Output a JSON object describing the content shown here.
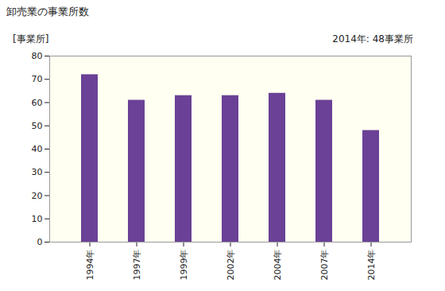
{
  "chart_data": {
    "type": "bar",
    "title": "卸売業の事業所数",
    "ylabel": "[事業所]",
    "annotation": "2014年: 48事業所",
    "categories": [
      "1994年",
      "1997年",
      "1999年",
      "2002年",
      "2004年",
      "2007年",
      "2014年"
    ],
    "values": [
      72,
      61,
      63,
      63,
      64,
      61,
      48
    ],
    "color": "#6a4196",
    "ylim": [
      0,
      80
    ],
    "yticks": [
      0,
      10,
      20,
      30,
      40,
      50,
      60,
      70,
      80
    ],
    "grid": false
  }
}
